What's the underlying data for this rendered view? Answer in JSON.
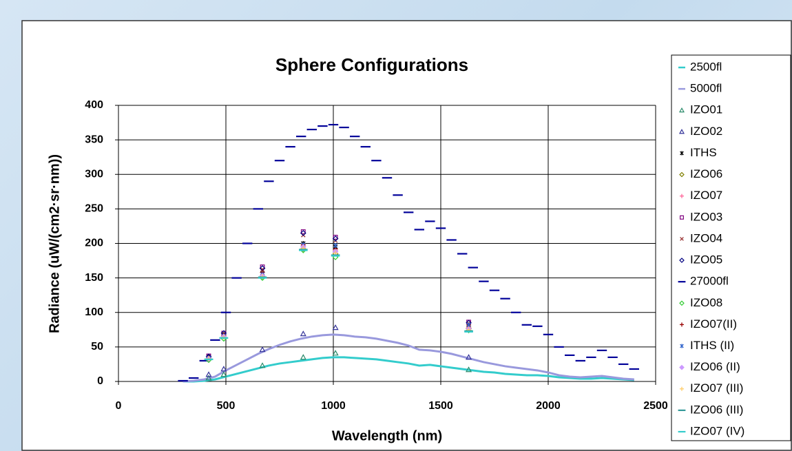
{
  "chart_data": {
    "type": "scatter",
    "title": "Sphere Configurations",
    "xlabel": "Wavelength (nm)",
    "ylabel": "Radiance (uW/(cm2·sr·nm))",
    "xlim": [
      0,
      2500
    ],
    "xticks": [
      0,
      500,
      1000,
      1500,
      2000,
      2500
    ],
    "ylim": [
      0,
      400
    ],
    "yticks": [
      0,
      50,
      100,
      150,
      200,
      250,
      300,
      350,
      400
    ],
    "grid": true,
    "legend": "right",
    "series": [
      {
        "name": "2500fl",
        "color": "#33cccc",
        "marker": "line",
        "x": [
          300,
          350,
          400,
          450,
          500,
          550,
          600,
          650,
          700,
          750,
          800,
          850,
          900,
          950,
          1000,
          1050,
          1100,
          1150,
          1200,
          1250,
          1300,
          1350,
          1400,
          1450,
          1500,
          1550,
          1600,
          1650,
          1700,
          1750,
          1800,
          1850,
          1900,
          1950,
          2000,
          2050,
          2100,
          2150,
          2200,
          2250,
          2300,
          2350,
          2400
        ],
        "values": [
          0,
          0,
          1,
          3,
          7,
          11,
          15,
          19,
          23,
          26,
          28,
          30,
          32,
          34,
          35,
          35,
          34,
          33,
          32,
          30,
          28,
          26,
          23,
          24,
          22,
          20,
          18,
          16,
          14,
          13,
          11,
          10,
          9,
          9,
          8,
          6,
          5,
          4,
          4,
          5,
          4,
          3,
          2
        ]
      },
      {
        "name": "5000fl",
        "color": "#9999dd",
        "marker": "line",
        "x": [
          300,
          350,
          400,
          450,
          500,
          550,
          600,
          650,
          700,
          750,
          800,
          850,
          900,
          950,
          1000,
          1050,
          1100,
          1150,
          1200,
          1250,
          1300,
          1350,
          1400,
          1450,
          1500,
          1550,
          1600,
          1650,
          1700,
          1750,
          1800,
          1850,
          1900,
          1950,
          2000,
          2050,
          2100,
          2150,
          2200,
          2250,
          2300,
          2350,
          2400
        ],
        "values": [
          0,
          1,
          3,
          7,
          16,
          24,
          32,
          40,
          47,
          53,
          58,
          62,
          65,
          67,
          68,
          67,
          65,
          64,
          62,
          59,
          56,
          52,
          46,
          45,
          43,
          40,
          36,
          32,
          28,
          25,
          22,
          20,
          18,
          16,
          13,
          9,
          7,
          6,
          7,
          8,
          6,
          4,
          3
        ]
      },
      {
        "name": "IZO01",
        "color": "#2a8a6a",
        "marker": "triangle",
        "x": [
          420,
          490,
          670,
          860,
          1010,
          1630
        ],
        "values": [
          5,
          10,
          23,
          35,
          41,
          17
        ]
      },
      {
        "name": "IZO02",
        "color": "#333399",
        "marker": "triangle",
        "x": [
          420,
          490,
          670,
          860,
          1010,
          1630
        ],
        "values": [
          10,
          18,
          46,
          69,
          78,
          35
        ]
      },
      {
        "name": "ITHS",
        "color": "#000000",
        "marker": "star",
        "x": [
          420,
          490,
          670,
          860,
          1010,
          1630
        ],
        "values": [
          36,
          68,
          157,
          200,
          195,
          80
        ]
      },
      {
        "name": "IZO06",
        "color": "#808000",
        "marker": "diamond",
        "x": [
          420,
          490,
          670,
          860,
          1010,
          1630
        ],
        "values": [
          33,
          65,
          152,
          192,
          185,
          77
        ]
      },
      {
        "name": "IZO07",
        "color": "#ff6699",
        "marker": "plus",
        "x": [
          420,
          490,
          670,
          860,
          1010,
          1630
        ],
        "values": [
          34,
          66,
          154,
          196,
          190,
          78
        ]
      },
      {
        "name": "IZO03",
        "color": "#800080",
        "marker": "square",
        "x": [
          420,
          490,
          670,
          860,
          1010,
          1630
        ],
        "values": [
          37,
          70,
          166,
          217,
          209,
          86
        ]
      },
      {
        "name": "IZO04",
        "color": "#993333",
        "marker": "x",
        "x": [
          420,
          490,
          670,
          860,
          1010,
          1630
        ],
        "values": [
          35,
          69,
          162,
          212,
          204,
          84
        ]
      },
      {
        "name": "IZO05",
        "color": "#000080",
        "marker": "diamond",
        "x": [
          420,
          490,
          670,
          860,
          1010,
          1630
        ],
        "values": [
          36,
          70,
          164,
          215,
          207,
          85
        ]
      },
      {
        "name": "27000fl",
        "color": "#000099",
        "marker": "dash",
        "x": [
          300,
          350,
          400,
          450,
          500,
          550,
          600,
          650,
          700,
          750,
          800,
          850,
          900,
          950,
          1000,
          1050,
          1100,
          1150,
          1200,
          1250,
          1300,
          1350,
          1400,
          1450,
          1500,
          1550,
          1600,
          1650,
          1700,
          1750,
          1800,
          1850,
          1900,
          1950,
          2000,
          2050,
          2100,
          2150,
          2200,
          2250,
          2300,
          2350,
          2400
        ],
        "values": [
          1,
          5,
          30,
          60,
          100,
          150,
          200,
          250,
          290,
          320,
          340,
          355,
          365,
          370,
          372,
          368,
          355,
          340,
          320,
          295,
          270,
          245,
          220,
          232,
          222,
          205,
          185,
          165,
          145,
          132,
          120,
          100,
          82,
          80,
          68,
          50,
          38,
          30,
          35,
          45,
          35,
          25,
          18
        ]
      },
      {
        "name": "IZO08",
        "color": "#33cc33",
        "marker": "diamond",
        "x": [
          420,
          490,
          670,
          860,
          1010,
          1630
        ],
        "values": [
          31,
          62,
          150,
          190,
          180,
          74
        ]
      },
      {
        "name": "IZO07(II)",
        "color": "#990000",
        "marker": "plus",
        "x": [
          420,
          490,
          670,
          860,
          1010,
          1630
        ],
        "values": [
          34,
          67,
          158,
          198,
          192,
          80
        ]
      },
      {
        "name": "ITHS (II)",
        "color": "#3366cc",
        "marker": "star",
        "x": [
          420,
          490,
          670,
          860,
          1010,
          1630
        ],
        "values": [
          34,
          66,
          155,
          198,
          197,
          82
        ]
      },
      {
        "name": "IZO06 (II)",
        "color": "#cc99ff",
        "marker": "diamond-filled",
        "x": [
          420,
          490,
          670,
          860,
          1010,
          1630
        ],
        "values": [
          33,
          65,
          153,
          195,
          188,
          76
        ]
      },
      {
        "name": "IZO07 (III)",
        "color": "#ffcc66",
        "marker": "plus",
        "x": [
          420,
          490,
          670,
          860,
          1010,
          1630
        ],
        "values": [
          33,
          64,
          152,
          193,
          186,
          75
        ]
      },
      {
        "name": "IZO06 (III)",
        "color": "#339999",
        "marker": "dash",
        "x": [
          420,
          490,
          670,
          860,
          1010,
          1630
        ],
        "values": [
          32,
          63,
          151,
          191,
          183,
          73
        ]
      },
      {
        "name": "IZO07 (IV)",
        "color": "#33cccc",
        "marker": "dash",
        "x": [
          420,
          490,
          670,
          860,
          1010,
          1630
        ],
        "values": [
          32,
          63,
          150,
          190,
          182,
          72
        ]
      }
    ]
  }
}
